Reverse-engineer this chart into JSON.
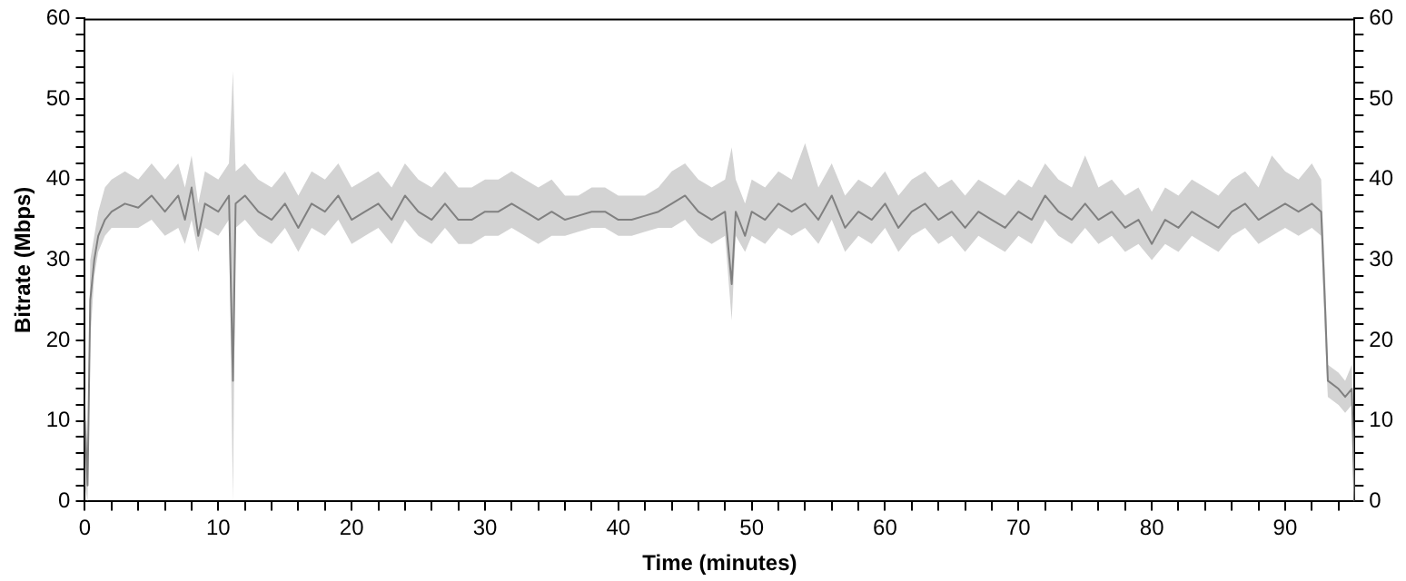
{
  "chart_data": {
    "type": "line",
    "xlabel": "Time (minutes)",
    "ylabel": "Bitrate (Mbps)",
    "xlim": [
      0,
      95.2
    ],
    "ylim": [
      0,
      60
    ],
    "y2lim": [
      0,
      60
    ],
    "xticks": [
      0,
      {
        "value": 2,
        "label": null
      },
      {
        "value": 4,
        "label": null
      },
      {
        "value": 6,
        "label": null
      },
      {
        "value": 8,
        "label": null
      },
      10,
      {
        "value": 12,
        "label": null
      },
      {
        "value": 14,
        "label": null
      },
      {
        "value": 16,
        "label": null
      },
      {
        "value": 18,
        "label": null
      },
      20,
      {
        "value": 22,
        "label": null
      },
      {
        "value": 24,
        "label": null
      },
      {
        "value": 26,
        "label": null
      },
      {
        "value": 28,
        "label": null
      },
      30,
      {
        "value": 32,
        "label": null
      },
      {
        "value": 34,
        "label": null
      },
      {
        "value": 36,
        "label": null
      },
      {
        "value": 38,
        "label": null
      },
      40,
      {
        "value": 42,
        "label": null
      },
      {
        "value": 44,
        "label": null
      },
      {
        "value": 46,
        "label": null
      },
      {
        "value": 48,
        "label": null
      },
      50,
      {
        "value": 52,
        "label": null
      },
      {
        "value": 54,
        "label": null
      },
      {
        "value": 56,
        "label": null
      },
      {
        "value": 58,
        "label": null
      },
      60,
      {
        "value": 62,
        "label": null
      },
      {
        "value": 64,
        "label": null
      },
      {
        "value": 66,
        "label": null
      },
      {
        "value": 68,
        "label": null
      },
      70,
      {
        "value": 72,
        "label": null
      },
      {
        "value": 74,
        "label": null
      },
      {
        "value": 76,
        "label": null
      },
      {
        "value": 78,
        "label": null
      },
      80,
      {
        "value": 82,
        "label": null
      },
      {
        "value": 84,
        "label": null
      },
      {
        "value": 86,
        "label": null
      },
      {
        "value": 88,
        "label": null
      },
      90,
      {
        "value": 92,
        "label": null
      },
      {
        "value": 94,
        "label": null
      }
    ],
    "yticks": [
      0,
      {
        "value": 2,
        "label": null
      },
      {
        "value": 4,
        "label": null
      },
      {
        "value": 6,
        "label": null
      },
      {
        "value": 8,
        "label": null
      },
      10,
      {
        "value": 12,
        "label": null
      },
      {
        "value": 14,
        "label": null
      },
      {
        "value": 16,
        "label": null
      },
      {
        "value": 18,
        "label": null
      },
      20,
      {
        "value": 22,
        "label": null
      },
      {
        "value": 24,
        "label": null
      },
      {
        "value": 26,
        "label": null
      },
      {
        "value": 28,
        "label": null
      },
      30,
      {
        "value": 32,
        "label": null
      },
      {
        "value": 34,
        "label": null
      },
      {
        "value": 36,
        "label": null
      },
      {
        "value": 38,
        "label": null
      },
      40,
      {
        "value": 42,
        "label": null
      },
      {
        "value": 44,
        "label": null
      },
      {
        "value": 46,
        "label": null
      },
      {
        "value": 48,
        "label": null
      },
      50,
      {
        "value": 52,
        "label": null
      },
      {
        "value": 54,
        "label": null
      },
      {
        "value": 56,
        "label": null
      },
      {
        "value": 58,
        "label": null
      },
      60
    ],
    "y2ticks": [
      0,
      {
        "value": 2,
        "label": null
      },
      {
        "value": 4,
        "label": null
      },
      {
        "value": 6,
        "label": null
      },
      {
        "value": 8,
        "label": null
      },
      10,
      {
        "value": 12,
        "label": null
      },
      {
        "value": 14,
        "label": null
      },
      {
        "value": 16,
        "label": null
      },
      {
        "value": 18,
        "label": null
      },
      20,
      {
        "value": 22,
        "label": null
      },
      {
        "value": 24,
        "label": null
      },
      {
        "value": 26,
        "label": null
      },
      {
        "value": 28,
        "label": null
      },
      30,
      {
        "value": 32,
        "label": null
      },
      {
        "value": 34,
        "label": null
      },
      {
        "value": 36,
        "label": null
      },
      {
        "value": 38,
        "label": null
      },
      40,
      {
        "value": 42,
        "label": null
      },
      {
        "value": 44,
        "label": null
      },
      {
        "value": 46,
        "label": null
      },
      {
        "value": 48,
        "label": null
      },
      50,
      {
        "value": 52,
        "label": null
      },
      {
        "value": 54,
        "label": null
      },
      {
        "value": 56,
        "label": null
      },
      {
        "value": 58,
        "label": null
      },
      60
    ],
    "grid": false,
    "legend": false,
    "marker": "none",
    "line_style": "solid",
    "series": [
      {
        "color": "#808080",
        "x": [
          0,
          0.2,
          0.4,
          0.7,
          1,
          1.5,
          2,
          3,
          4,
          5,
          6,
          7,
          7.5,
          8,
          8.5,
          9,
          10,
          10.8,
          11.1,
          11.3,
          12,
          13,
          14,
          15,
          16,
          17,
          18,
          19,
          20,
          21,
          22,
          23,
          24,
          25,
          26,
          27,
          28,
          29,
          30,
          31,
          32,
          33,
          34,
          35,
          36,
          37,
          38,
          39,
          40,
          41,
          42,
          43,
          44,
          45,
          46,
          47,
          48,
          48.5,
          48.8,
          49.5,
          50,
          51,
          52,
          53,
          54,
          55,
          56,
          57,
          58,
          59,
          60,
          61,
          62,
          63,
          64,
          65,
          66,
          67,
          68,
          69,
          70,
          71,
          72,
          73,
          74,
          75,
          76,
          77,
          78,
          79,
          80,
          81,
          82,
          83,
          84,
          85,
          86,
          87,
          88,
          89,
          90,
          91,
          92,
          92.7,
          93,
          93.2,
          94,
          94.5,
          95,
          95.2
        ],
        "values": [
          10,
          2,
          25,
          30,
          33,
          35,
          36,
          37,
          36.5,
          38,
          36,
          38,
          35,
          39,
          33,
          37,
          36,
          38,
          15,
          37,
          38,
          36,
          35,
          37,
          34,
          37,
          36,
          38,
          35,
          36,
          37,
          35,
          38,
          36,
          35,
          37,
          35,
          35,
          36,
          36,
          37,
          36,
          35,
          36,
          35,
          35.5,
          36,
          36,
          35,
          35,
          35.5,
          36,
          37,
          38,
          36,
          35,
          36,
          27,
          36,
          33,
          36,
          35,
          37,
          36,
          37,
          35,
          38,
          34,
          36,
          35,
          37,
          34,
          36,
          37,
          35,
          36,
          34,
          36,
          35,
          34,
          36,
          35,
          38,
          36,
          35,
          37,
          35,
          36,
          34,
          35,
          32,
          35,
          34,
          36,
          35,
          34,
          36,
          37,
          35,
          36,
          37,
          36,
          37,
          36,
          24,
          15,
          14,
          13,
          14,
          0
        ],
        "lower": [
          2,
          0,
          20,
          28,
          31,
          33,
          34,
          34,
          34,
          35,
          33,
          34,
          32,
          35,
          31,
          34,
          33,
          35,
          0,
          34,
          35,
          33,
          32,
          34,
          31,
          34,
          33,
          35,
          32,
          33,
          34,
          32,
          35,
          33,
          32,
          34,
          32,
          32,
          33,
          33,
          34,
          33,
          32,
          33,
          33,
          33.5,
          34,
          34,
          33,
          33,
          33.5,
          34,
          34,
          35,
          33,
          32,
          33,
          22.5,
          33,
          31,
          33,
          32,
          34,
          33,
          34,
          32,
          35,
          31,
          33,
          32,
          34,
          31,
          33,
          34,
          32,
          33,
          31,
          33,
          32,
          31,
          33,
          32,
          35,
          33,
          32,
          34,
          32,
          33,
          31,
          32,
          30,
          32,
          31,
          33,
          32,
          31,
          33,
          34,
          32,
          33,
          34,
          33,
          34,
          33,
          20,
          13,
          12,
          11,
          12,
          0
        ],
        "upper": [
          14,
          6,
          30,
          33,
          36,
          39,
          40,
          41,
          40,
          42,
          40,
          42,
          39,
          43,
          37,
          41,
          40,
          42,
          53.5,
          41,
          42,
          40,
          39,
          41,
          38,
          41,
          40,
          42,
          39,
          40,
          41,
          39,
          42,
          40,
          39,
          41,
          39,
          39,
          40,
          40,
          41,
          40,
          39,
          40,
          38,
          38,
          39,
          39,
          38,
          38,
          38,
          39,
          41,
          42,
          40,
          39,
          40,
          44,
          40,
          37,
          40,
          39,
          41,
          40,
          44.5,
          39,
          42,
          38,
          40,
          39,
          41,
          38,
          40,
          41,
          39,
          40,
          38,
          40,
          39,
          38,
          40,
          39,
          42,
          40,
          39,
          43,
          39,
          40,
          38,
          39,
          36,
          39,
          38,
          40,
          39,
          38,
          40,
          41,
          39,
          43,
          41,
          40,
          42,
          40,
          28,
          17,
          16,
          15,
          17,
          3
        ]
      }
    ]
  }
}
